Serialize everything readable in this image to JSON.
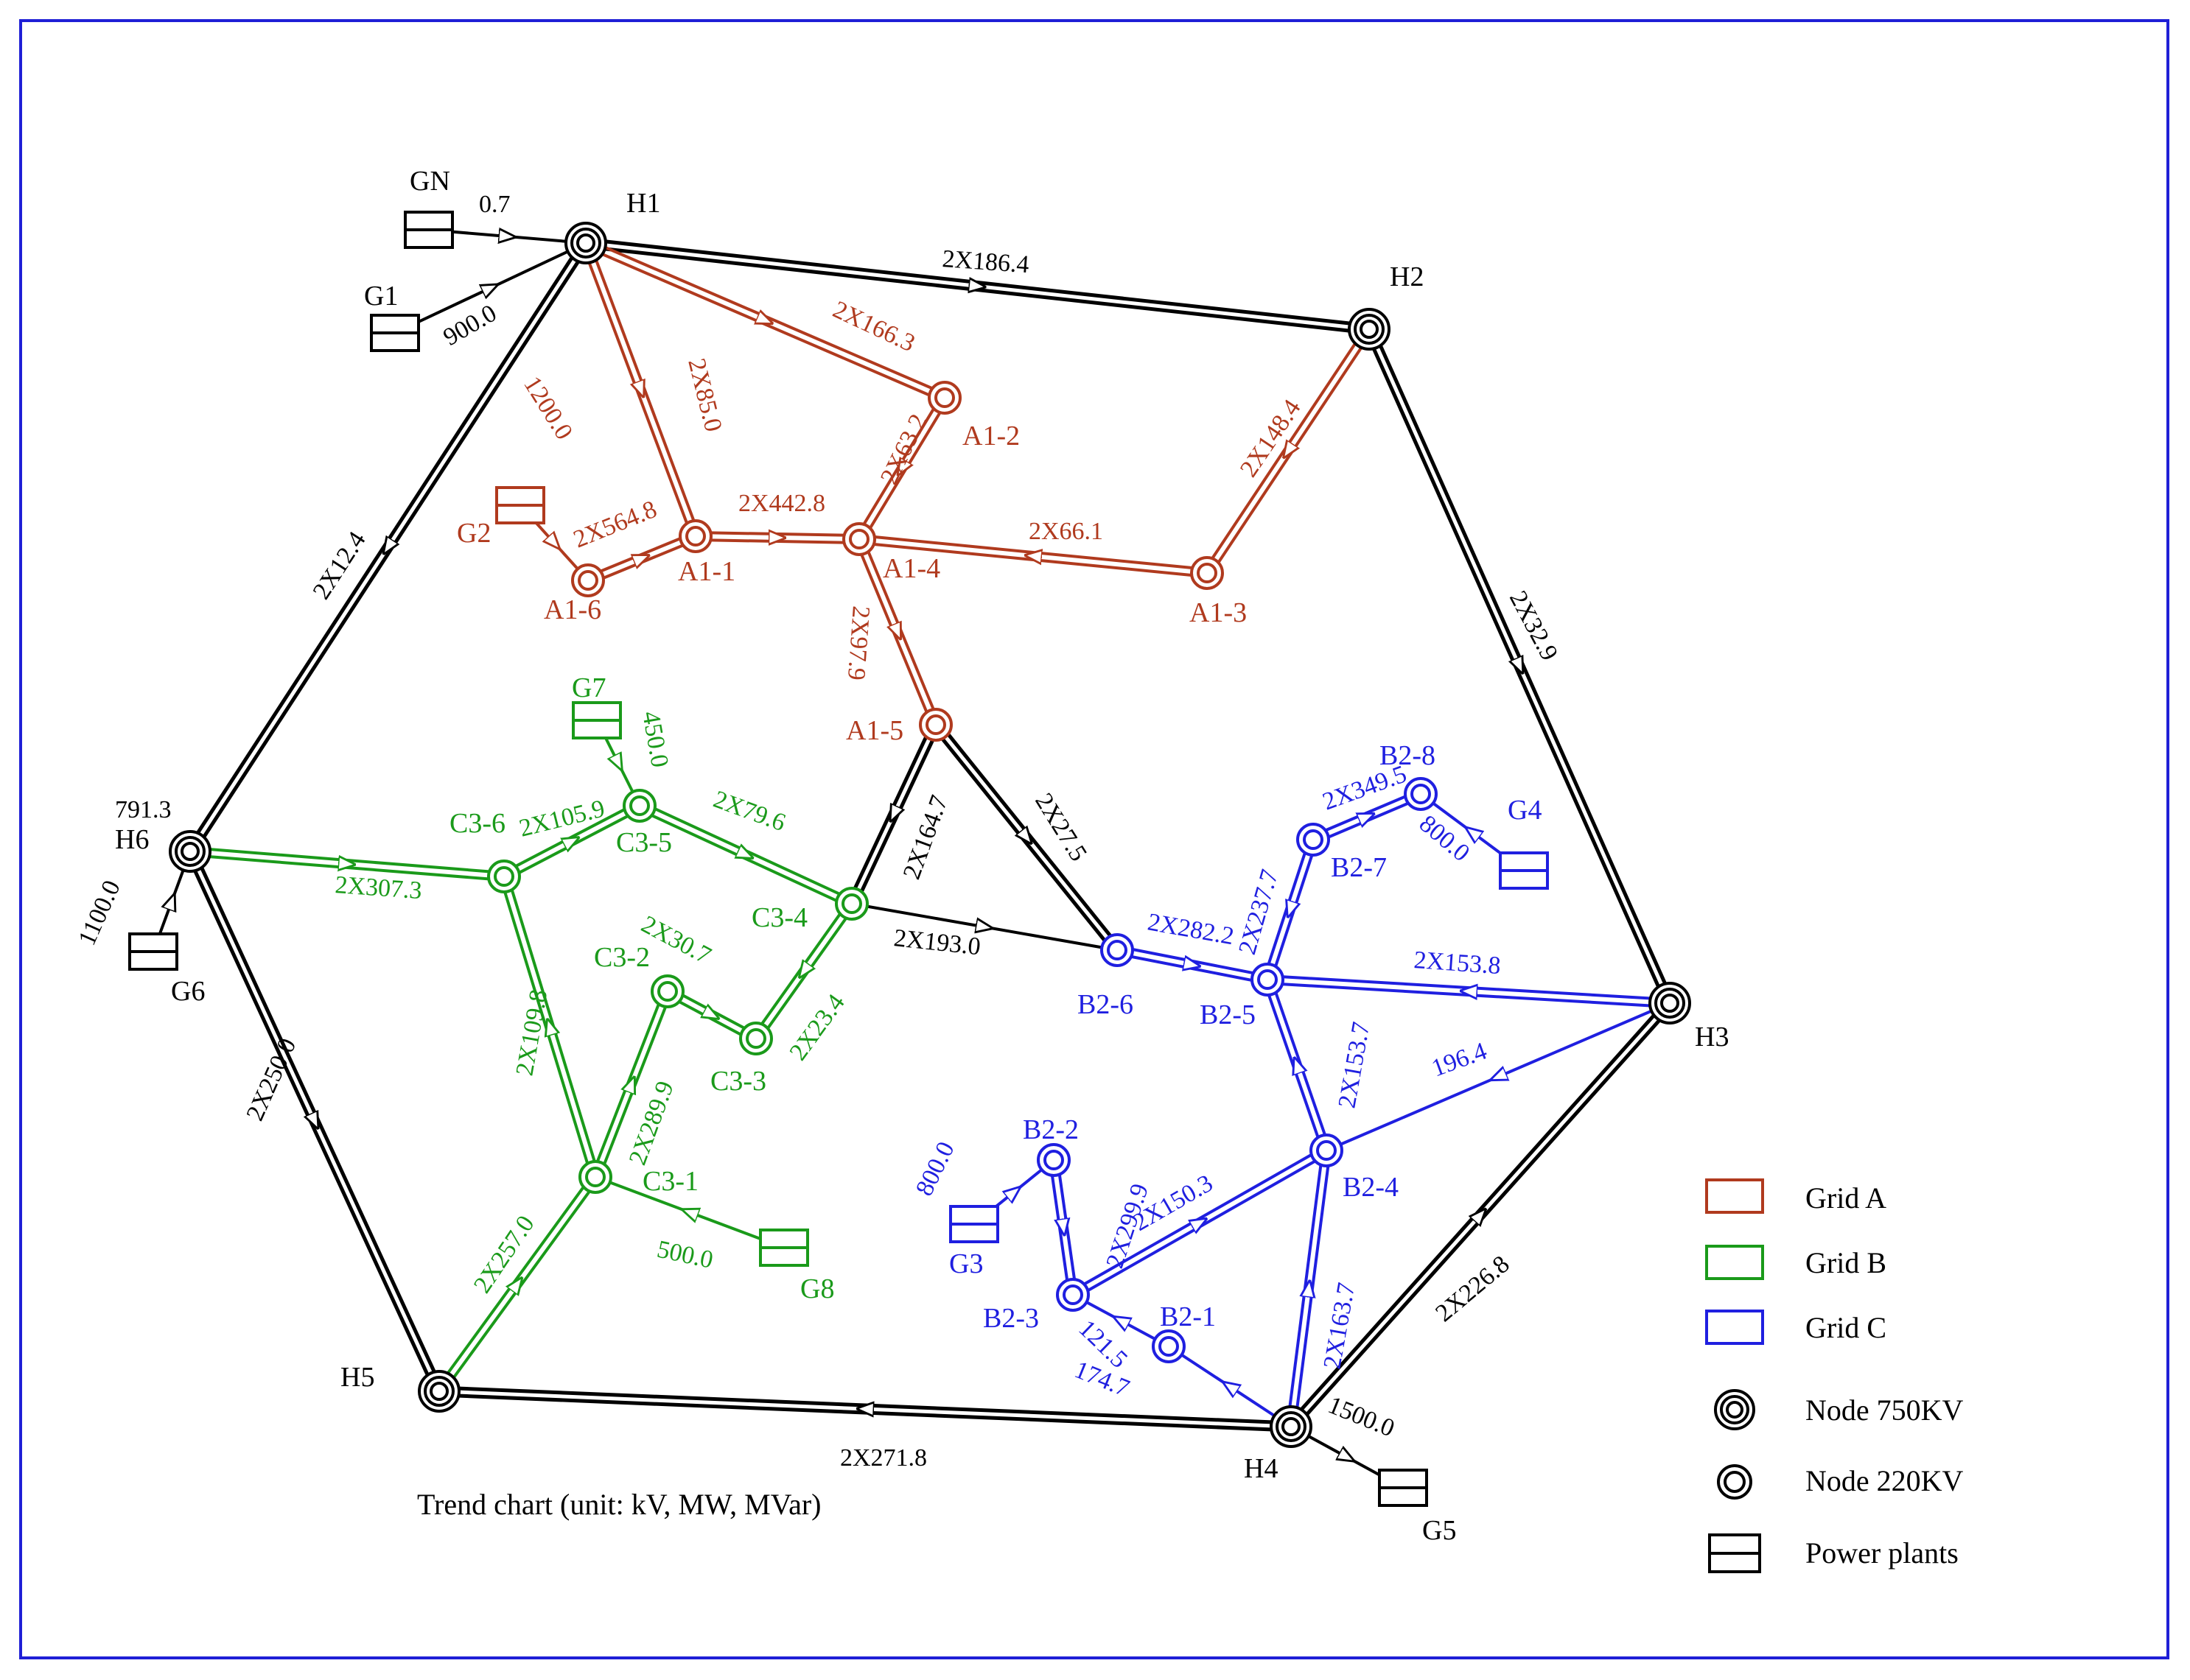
{
  "caption": "Trend chart (unit: kV, MW, MVar)",
  "colors": {
    "frame": "#1f1fd6",
    "backbone": "#000000",
    "grid_a": "#b03a1e",
    "grid_b": "#1a9a1a",
    "grid_c": "#1f1fe0"
  },
  "nodes": {
    "H1": "H1",
    "H2": "H2",
    "H3": "H3",
    "H4": "H4",
    "H5": "H5",
    "H6": "H6",
    "A1_1": "A1-1",
    "A1_2": "A1-2",
    "A1_3": "A1-3",
    "A1_4": "A1-4",
    "A1_5": "A1-5",
    "A1_6": "A1-6",
    "C3_1": "C3-1",
    "C3_2": "C3-2",
    "C3_3": "C3-3",
    "C3_4": "C3-4",
    "C3_5": "C3-5",
    "C3_6": "C3-6",
    "B2_1": "B2-1",
    "B2_2": "B2-2",
    "B2_3": "B2-3",
    "B2_4": "B2-4",
    "B2_5": "B2-5",
    "B2_6": "B2-6",
    "B2_7": "B2-7",
    "B2_8": "B2-8"
  },
  "plants": {
    "GN": "GN",
    "G1": "G1",
    "G2": "G2",
    "G3": "G3",
    "G4": "G4",
    "G5": "G5",
    "G6": "G6",
    "G7": "G7",
    "G8": "G8"
  },
  "flows": {
    "gn_h1": "0.7",
    "g1_h1": "900.0",
    "h1_h2": "2X186.4",
    "h1_h6": "2X12.4",
    "h2_h3": "2X32.9",
    "h3_h4": "2X226.8",
    "h4_h5": "2X271.8",
    "h6_h5": "2X250.0",
    "h6_value": "791.3",
    "g6_h6": "1100.0",
    "g5_h4": "1500.0",
    "h1_a12": "2X166.3",
    "h1_a11": "2X85.0",
    "g2_side": "1200.0",
    "a16_a11": "2X564.8",
    "a11_a14": "2X442.8",
    "a12_a14": "2X63.2",
    "h2_a13": "2X148.4",
    "a13_a14": "2X66.1",
    "a14_a15": "2X97.9",
    "a15_c34": "2X164.7",
    "a15_b26": "2X27.5",
    "c34_b26": "2X193.0",
    "g7_c35": "450.0",
    "c36_c35": "2X105.9",
    "c35_c34": "2X79.6",
    "h6_c36": "2X307.3",
    "c32_c33": "2X30.7",
    "c34_c33": "2X23.4",
    "c36_c31": "2X109.8",
    "c31_c32": "2X289.9",
    "g8_c31": "500.0",
    "h5_c31": "2X257.0",
    "b27_b28": "2X349.5",
    "g4_b28": "800.0",
    "b25_b27": "2X237.7",
    "b26_b25": "2X282.2",
    "h3_b25": "2X153.8",
    "b24_b25": "2X153.7",
    "h3_b24": "196.4",
    "b23_b24": "2X150.3",
    "b22_b23": "2X299.9",
    "g3_b22": "800.0",
    "b21_b23": "121.5",
    "h4_b21": "174.7",
    "h4_b24": "2X163.7"
  },
  "legend": [
    {
      "label": "Grid A",
      "kind": "line",
      "color": "#b03a1e"
    },
    {
      "label": "Grid B",
      "kind": "line",
      "color": "#1a9a1a"
    },
    {
      "label": "Grid C",
      "kind": "line",
      "color": "#1f1fe0"
    },
    {
      "label": "Node 750KV",
      "kind": "node750",
      "color": "#000000"
    },
    {
      "label": "Node 220KV",
      "kind": "node220",
      "color": "#000000"
    },
    {
      "label": "Power plants",
      "kind": "plant",
      "color": "#000000"
    }
  ]
}
